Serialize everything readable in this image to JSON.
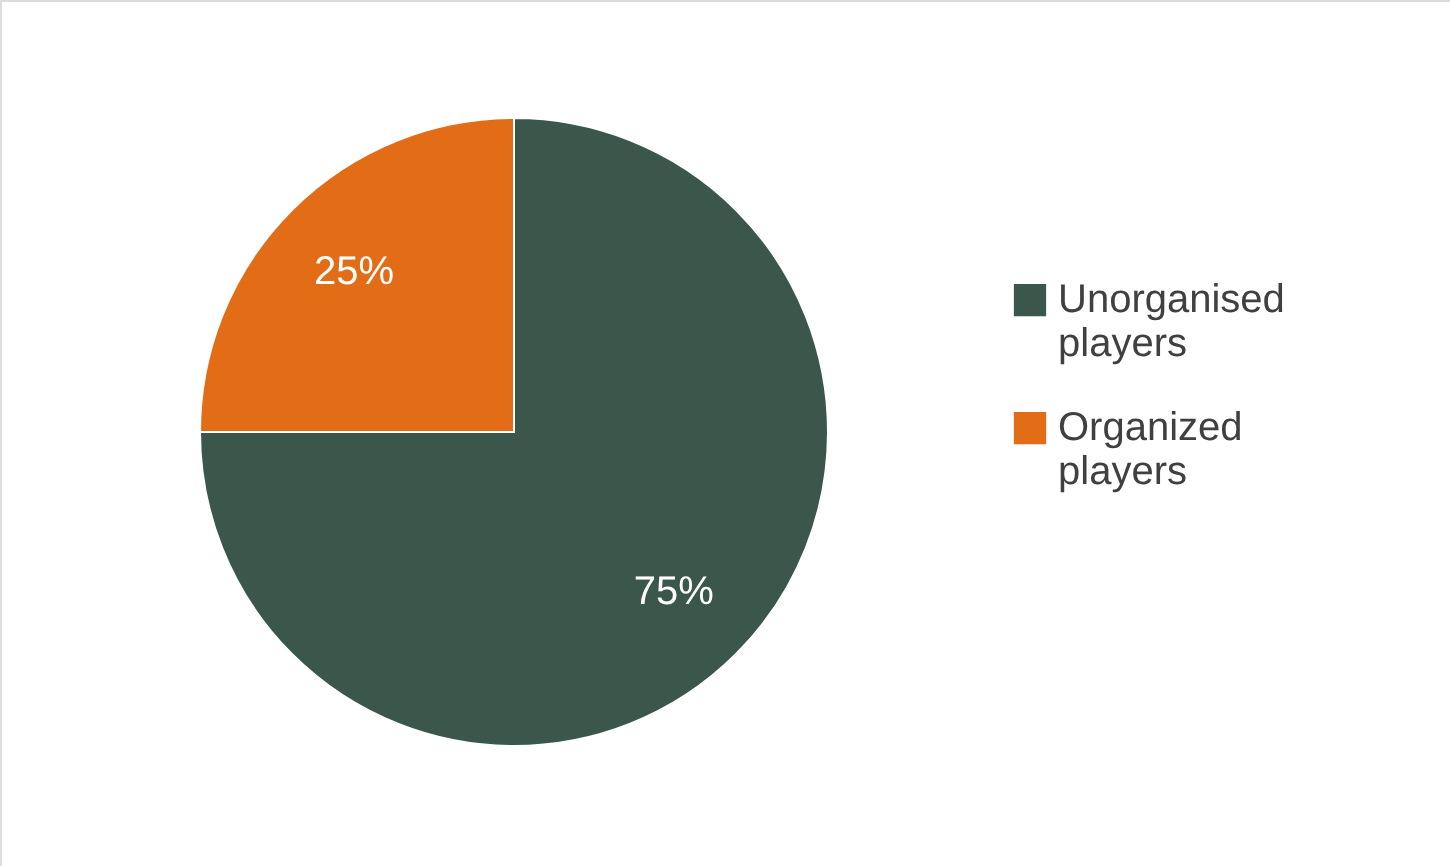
{
  "chart_data": {
    "type": "pie",
    "categories": [
      "Unorganised players",
      "Organized players"
    ],
    "values": [
      75,
      25
    ],
    "colors": [
      "#3b574b",
      "#e36c17"
    ],
    "value_labels": [
      "75%",
      "25%"
    ],
    "legend": "right"
  }
}
